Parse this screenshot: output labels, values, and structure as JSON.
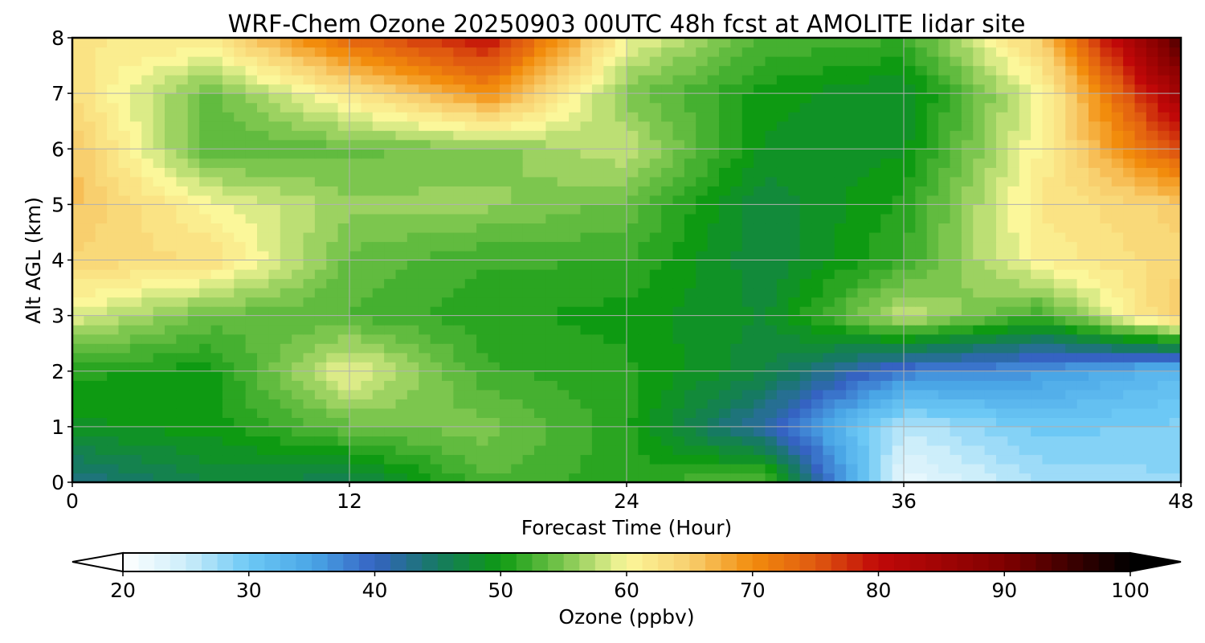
{
  "chart_data": {
    "type": "heatmap",
    "title": "WRF-Chem Ozone  20250903 00UTC 48h fcst at AMOLITE lidar site",
    "xlabel": "Forecast Time (Hour)",
    "ylabel": "Alt AGL (km)",
    "xlim": [
      0,
      48
    ],
    "ylim": [
      0,
      8
    ],
    "x_ticks": [
      "0",
      "12",
      "24",
      "36",
      "48"
    ],
    "y_ticks": [
      "0",
      "1",
      "2",
      "3",
      "4",
      "5",
      "6",
      "7",
      "8"
    ],
    "grid": true,
    "colorbar": {
      "label": "Ozone  (ppbv)",
      "min": 20,
      "max": 100,
      "ticks": [
        "20",
        "30",
        "40",
        "50",
        "60",
        "70",
        "80",
        "90",
        "100"
      ],
      "extend": "both",
      "stops": [
        {
          "v": 20,
          "c": "#ffffff"
        },
        {
          "v": 25,
          "c": "#cdeefa"
        },
        {
          "v": 30,
          "c": "#6cc8f5"
        },
        {
          "v": 35,
          "c": "#4aa6e6"
        },
        {
          "v": 40,
          "c": "#3563c2"
        },
        {
          "v": 45,
          "c": "#167a62"
        },
        {
          "v": 50,
          "c": "#0e9a12"
        },
        {
          "v": 55,
          "c": "#7cc64e"
        },
        {
          "v": 60,
          "c": "#fbf79a"
        },
        {
          "v": 65,
          "c": "#f8cf6e"
        },
        {
          "v": 70,
          "c": "#f28c0c"
        },
        {
          "v": 75,
          "c": "#e05a10"
        },
        {
          "v": 80,
          "c": "#c00808"
        },
        {
          "v": 90,
          "c": "#800000"
        },
        {
          "v": 100,
          "c": "#000000"
        }
      ]
    },
    "x": [
      0,
      6,
      12,
      18,
      24,
      30,
      36,
      42,
      48
    ],
    "y": [
      0,
      1,
      2,
      3,
      4,
      5,
      6,
      7,
      8
    ],
    "z": [
      [
        43,
        47,
        46,
        53,
        51,
        54,
        22,
        27,
        28
      ],
      [
        49,
        50,
        54,
        55,
        51,
        41,
        26,
        30,
        29
      ],
      [
        51,
        50,
        60,
        52,
        51,
        47,
        38,
        36,
        32
      ],
      [
        59,
        54,
        53,
        51,
        50,
        48,
        58,
        52,
        66
      ],
      [
        64,
        63,
        54,
        52,
        52,
        47,
        52,
        61,
        64
      ],
      [
        66,
        60,
        56,
        56,
        54,
        47,
        51,
        62,
        65
      ],
      [
        66,
        53,
        54,
        55,
        58,
        49,
        49,
        61,
        76
      ],
      [
        63,
        54,
        62,
        70,
        55,
        50,
        48,
        60,
        85
      ],
      [
        62,
        62,
        74,
        80,
        60,
        53,
        52,
        65,
        95
      ]
    ]
  }
}
